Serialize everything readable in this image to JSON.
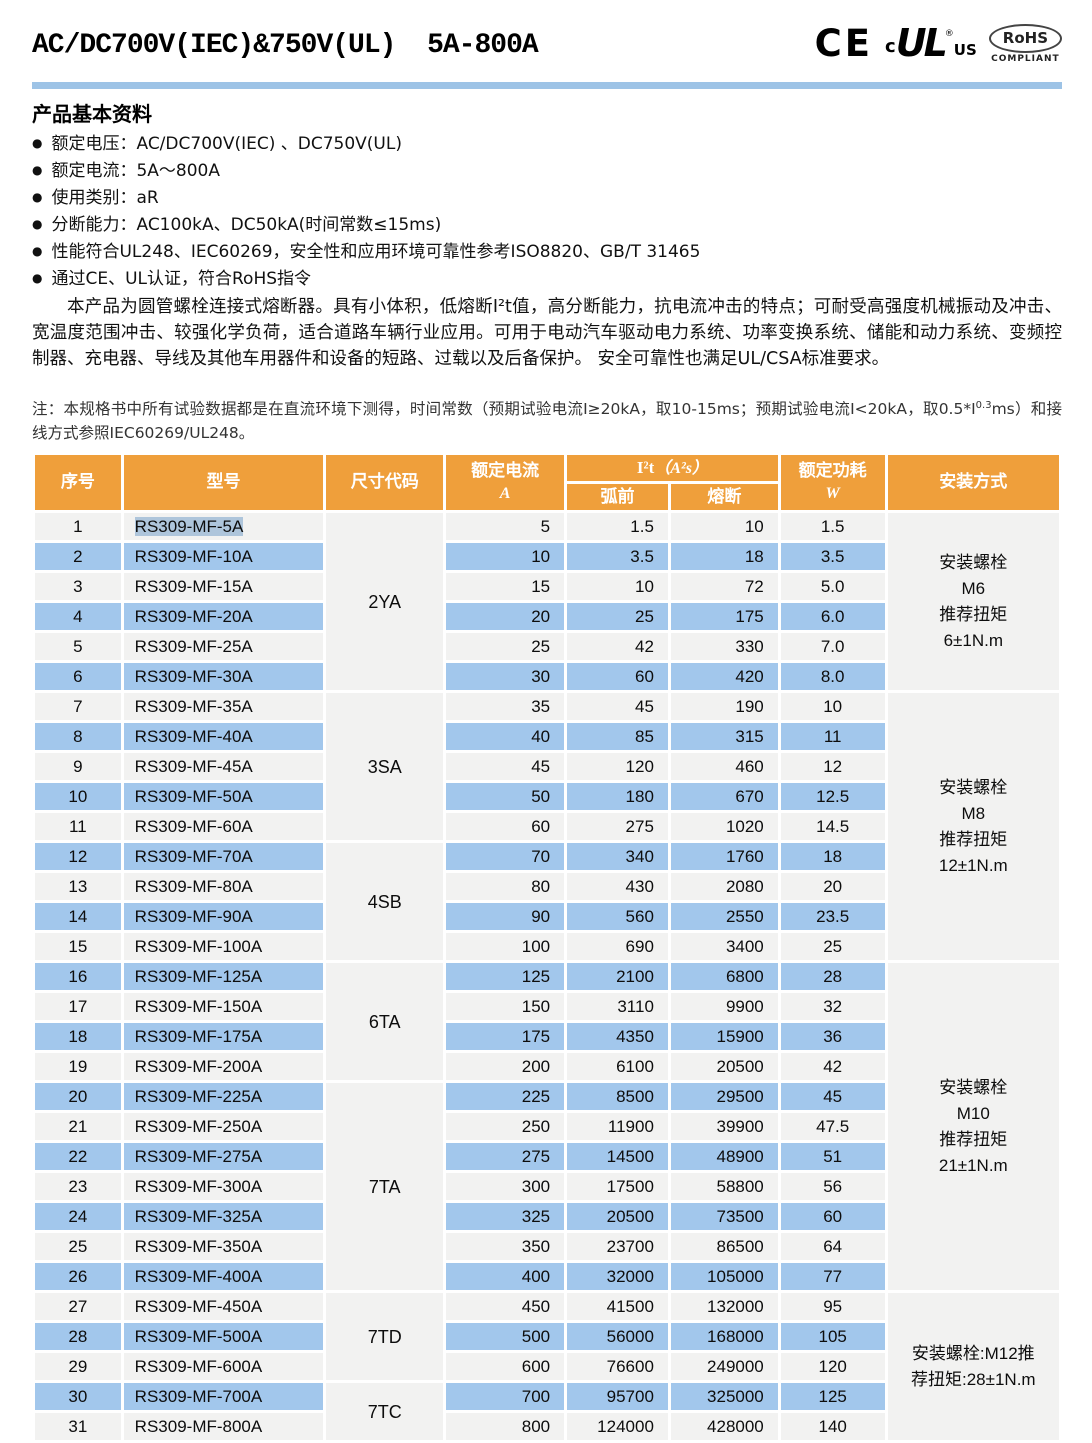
{
  "doc": {
    "title": "AC/DC700V(IEC)&750V(UL)  5A-800A",
    "certs": {
      "ce": "CE",
      "ul_c": "c",
      "ul": "UL",
      "ul_reg": "®",
      "ul_us": "US",
      "rohs": "RoHS",
      "rohs_sub": "COMPLIANT"
    }
  },
  "section": {
    "heading": "产品基本资料",
    "bullet_char": "●",
    "bullets": [
      "额定电压：AC/DC700V(IEC) 、DC750V(UL)",
      "额定电流：5A～800A",
      "使用类别：aR",
      "分断能力：AC100kA、DC50kA(时间常数≤15ms)",
      "性能符合UL248、IEC60269，安全性和应用环境可靠性参考ISO8820、GB/T 31465",
      "通过CE、UL认证，符合RoHS指令"
    ],
    "description": "本产品为圆管螺栓连接式熔断器。具有小体积，低熔断I²t值，高分断能力，抗电流冲击的特点；可耐受高强度机械振动及冲击、宽温度范围冲击、较强化学负荷，适合道路车辆行业应用。可用于电动汽车驱动电力系统、功率变换系统、储能和动力系统、变频控制器、充电器、导线及其他车用器件和设备的短路、过载以及后备保护。 安全可靠性也满足UL/CSA标准要求。"
  },
  "note": {
    "prefix": "注：本规格书中所有试验数据都是在直流环境下测得，时间常数（预期试验电流I≥20kA，取10-15ms；预期试验电流I<20kA，取0.5*I",
    "sup": "0.3",
    "suffix": "ms）和接线方式参照IEC60269/UL248。"
  },
  "table": {
    "headers": {
      "no": "序号",
      "model": "型号",
      "size_code": "尺寸代码",
      "current": "额定电流",
      "current_unit": "A",
      "i2t": "I²t",
      "i2t_unit": "（A²s）",
      "prearc": "弧前",
      "melt": "熔断",
      "power": "额定功耗",
      "power_unit": "W",
      "mounting": "安装方式"
    },
    "selected_row": 1,
    "rows": [
      {
        "no": "1",
        "model": "RS309-MF-5A",
        "current": "5",
        "prearc": "1.5",
        "melt": "10",
        "power": "1.5"
      },
      {
        "no": "2",
        "model": "RS309-MF-10A",
        "current": "10",
        "prearc": "3.5",
        "melt": "18",
        "power": "3.5"
      },
      {
        "no": "3",
        "model": "RS309-MF-15A",
        "current": "15",
        "prearc": "10",
        "melt": "72",
        "power": "5.0"
      },
      {
        "no": "4",
        "model": "RS309-MF-20A",
        "current": "20",
        "prearc": "25",
        "melt": "175",
        "power": "6.0"
      },
      {
        "no": "5",
        "model": "RS309-MF-25A",
        "current": "25",
        "prearc": "42",
        "melt": "330",
        "power": "7.0"
      },
      {
        "no": "6",
        "model": "RS309-MF-30A",
        "current": "30",
        "prearc": "60",
        "melt": "420",
        "power": "8.0"
      },
      {
        "no": "7",
        "model": "RS309-MF-35A",
        "current": "35",
        "prearc": "45",
        "melt": "190",
        "power": "10"
      },
      {
        "no": "8",
        "model": "RS309-MF-40A",
        "current": "40",
        "prearc": "85",
        "melt": "315",
        "power": "11"
      },
      {
        "no": "9",
        "model": "RS309-MF-45A",
        "current": "45",
        "prearc": "120",
        "melt": "460",
        "power": "12"
      },
      {
        "no": "10",
        "model": "RS309-MF-50A",
        "current": "50",
        "prearc": "180",
        "melt": "670",
        "power": "12.5"
      },
      {
        "no": "11",
        "model": "RS309-MF-60A",
        "current": "60",
        "prearc": "275",
        "melt": "1020",
        "power": "14.5"
      },
      {
        "no": "12",
        "model": "RS309-MF-70A",
        "current": "70",
        "prearc": "340",
        "melt": "1760",
        "power": "18"
      },
      {
        "no": "13",
        "model": "RS309-MF-80A",
        "current": "80",
        "prearc": "430",
        "melt": "2080",
        "power": "20"
      },
      {
        "no": "14",
        "model": "RS309-MF-90A",
        "current": "90",
        "prearc": "560",
        "melt": "2550",
        "power": "23.5"
      },
      {
        "no": "15",
        "model": "RS309-MF-100A",
        "current": "100",
        "prearc": "690",
        "melt": "3400",
        "power": "25"
      },
      {
        "no": "16",
        "model": "RS309-MF-125A",
        "current": "125",
        "prearc": "2100",
        "melt": "6800",
        "power": "28"
      },
      {
        "no": "17",
        "model": "RS309-MF-150A",
        "current": "150",
        "prearc": "3110",
        "melt": "9900",
        "power": "32"
      },
      {
        "no": "18",
        "model": "RS309-MF-175A",
        "current": "175",
        "prearc": "4350",
        "melt": "15900",
        "power": "36"
      },
      {
        "no": "19",
        "model": "RS309-MF-200A",
        "current": "200",
        "prearc": "6100",
        "melt": "20500",
        "power": "42"
      },
      {
        "no": "20",
        "model": "RS309-MF-225A",
        "current": "225",
        "prearc": "8500",
        "melt": "29500",
        "power": "45"
      },
      {
        "no": "21",
        "model": "RS309-MF-250A",
        "current": "250",
        "prearc": "11900",
        "melt": "39900",
        "power": "47.5"
      },
      {
        "no": "22",
        "model": "RS309-MF-275A",
        "current": "275",
        "prearc": "14500",
        "melt": "48900",
        "power": "51"
      },
      {
        "no": "23",
        "model": "RS309-MF-300A",
        "current": "300",
        "prearc": "17500",
        "melt": "58800",
        "power": "56"
      },
      {
        "no": "24",
        "model": "RS309-MF-325A",
        "current": "325",
        "prearc": "20500",
        "melt": "73500",
        "power": "60"
      },
      {
        "no": "25",
        "model": "RS309-MF-350A",
        "current": "350",
        "prearc": "23700",
        "melt": "86500",
        "power": "64"
      },
      {
        "no": "26",
        "model": "RS309-MF-400A",
        "current": "400",
        "prearc": "32000",
        "melt": "105000",
        "power": "77"
      },
      {
        "no": "27",
        "model": "RS309-MF-450A",
        "current": "450",
        "prearc": "41500",
        "melt": "132000",
        "power": "95"
      },
      {
        "no": "28",
        "model": "RS309-MF-500A",
        "current": "500",
        "prearc": "56000",
        "melt": "168000",
        "power": "105"
      },
      {
        "no": "29",
        "model": "RS309-MF-600A",
        "current": "600",
        "prearc": "76600",
        "melt": "249000",
        "power": "120"
      },
      {
        "no": "30",
        "model": "RS309-MF-700A",
        "current": "700",
        "prearc": "95700",
        "melt": "325000",
        "power": "125"
      },
      {
        "no": "31",
        "model": "RS309-MF-800A",
        "current": "800",
        "prearc": "124000",
        "melt": "428000",
        "power": "140"
      }
    ],
    "size_code_groups": [
      {
        "label": "2YA",
        "start": 1,
        "span": 6
      },
      {
        "label": "3SA",
        "start": 7,
        "span": 5
      },
      {
        "label": "4SB",
        "start": 12,
        "span": 4
      },
      {
        "label": "6TA",
        "start": 16,
        "span": 4
      },
      {
        "label": "7TA",
        "start": 20,
        "span": 7
      },
      {
        "label": "7TD",
        "start": 27,
        "span": 3
      },
      {
        "label": "7TC",
        "start": 30,
        "span": 2
      }
    ],
    "mounting_groups": [
      {
        "start": 1,
        "span": 6,
        "lines": [
          "安装螺栓",
          "M6",
          "推荐扭矩",
          "6±1N.m"
        ]
      },
      {
        "start": 7,
        "span": 9,
        "lines": [
          "安装螺栓",
          "M8",
          "推荐扭矩",
          "12±1N.m"
        ]
      },
      {
        "start": 16,
        "span": 11,
        "lines": [
          "安装螺栓",
          "M10",
          "推荐扭矩",
          "21±1N.m"
        ]
      },
      {
        "start": 27,
        "span": 5,
        "lines": [
          "安装螺栓:M12推",
          "荐扭矩:28±1N.m"
        ]
      }
    ]
  },
  "colors": {
    "header_bg": "#EF9F3B",
    "stripe_blue": "#A2C7EC",
    "stripe_gray": "#F2F2F1",
    "divider_blue": "#9DC3E6",
    "selection": "#AEC5DB"
  }
}
